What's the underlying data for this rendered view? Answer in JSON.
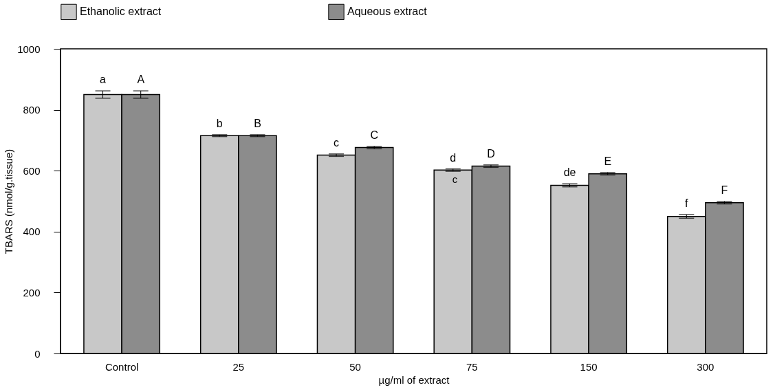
{
  "chart_data": {
    "type": "bar",
    "xlabel": "µg/ml of extract",
    "ylabel": "TBARS (nmol/g.tissue)",
    "categories": [
      "Control",
      "25",
      "50",
      "75",
      "150",
      "300"
    ],
    "series": [
      {
        "name": "Ethanolic extract",
        "color": "#c8c8c8",
        "values": [
          850,
          715,
          651,
          602,
          552,
          450
        ],
        "errors": [
          12,
          3,
          4,
          4,
          5,
          6
        ],
        "value_labels": [
          "a",
          "b",
          "c",
          "d",
          "de",
          "f"
        ]
      },
      {
        "name": "Aqueous extract",
        "color": "#8c8c8c",
        "values": [
          850,
          715,
          676,
          615,
          590,
          495
        ],
        "errors": [
          12,
          3,
          4,
          4,
          4,
          4
        ],
        "value_labels": [
          "A",
          "B",
          "C",
          "D",
          "E",
          "F"
        ]
      }
    ],
    "annotations": [
      {
        "text": "c",
        "x": "75",
        "y": 570
      }
    ],
    "ylim": [
      0,
      1000
    ],
    "yticks": [
      0,
      200,
      400,
      600,
      800,
      1000
    ],
    "grid": false,
    "legend": "top"
  }
}
